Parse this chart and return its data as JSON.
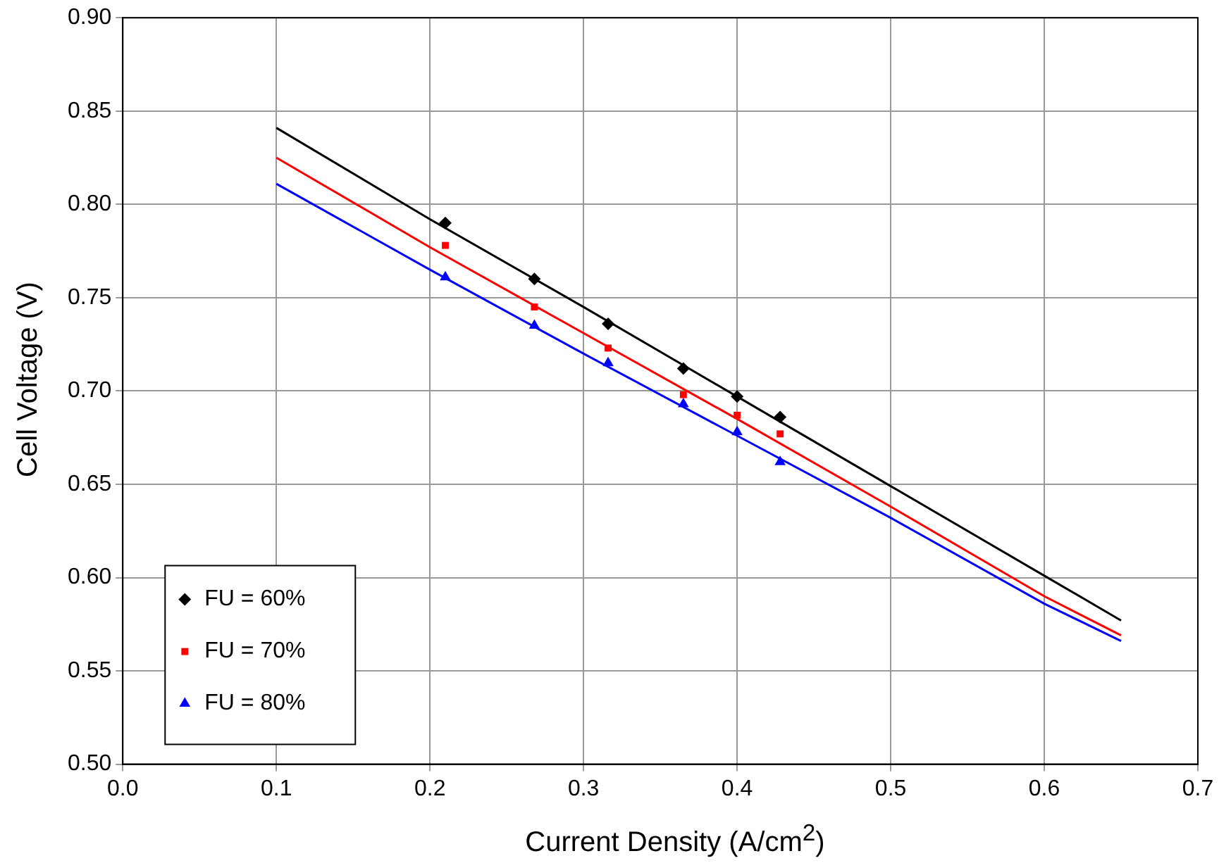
{
  "chart_data": {
    "type": "scatter",
    "xlabel": "Current Density (A/cm$^{2}$)",
    "ylabel": "Cell Voltage (V)",
    "xlim": [
      0,
      0.7
    ],
    "xticks": [
      {
        "value": 0,
        "label": "0.0"
      },
      0.1,
      0.2,
      0.3,
      0.4,
      0.5,
      0.6,
      0.7
    ],
    "ylim": [
      0.5,
      0.9
    ],
    "yticks": [
      {
        "value": 0.5,
        "label": "0.50"
      },
      0.55,
      {
        "value": 0.6,
        "label": "0.60"
      },
      0.65,
      {
        "value": 0.7,
        "label": "0.70"
      },
      0.75,
      {
        "value": 0.8,
        "label": "0.80"
      },
      0.85,
      {
        "value": 0.9,
        "label": "0.90"
      }
    ],
    "grid": true,
    "legend": "bottom left",
    "series": [
      {
        "name": "FU = 60%",
        "marker": "diamond",
        "color": "#000000",
        "x": [
          0.21,
          0.268,
          0.316,
          0.365,
          0.4,
          0.428
        ],
        "values": [
          0.79,
          0.76,
          0.736,
          0.712,
          0.697,
          0.686
        ]
      },
      {
        "name": "FU = 70%",
        "marker": "square",
        "color": "#ff0000",
        "x": [
          0.21,
          0.268,
          0.316,
          0.365,
          0.4,
          0.428
        ],
        "values": [
          0.778,
          0.745,
          0.723,
          0.698,
          0.687,
          0.677
        ]
      },
      {
        "name": "FU = 80%",
        "marker": "triangle",
        "color": "#0000ff",
        "x": [
          0.21,
          0.268,
          0.316,
          0.365,
          0.4,
          0.428
        ],
        "values": [
          0.761,
          0.735,
          0.715,
          0.693,
          0.678,
          0.662
        ]
      },
      {
        "type": "line",
        "marker": "none",
        "color": "#000000",
        "x": [
          0.1,
          0.2,
          0.3,
          0.4,
          0.5,
          0.6,
          0.65
        ],
        "values": [
          0.841,
          0.792,
          0.745,
          0.697,
          0.649,
          0.601,
          0.577
        ]
      },
      {
        "type": "line",
        "marker": "none",
        "color": "#ff0000",
        "x": [
          0.1,
          0.2,
          0.3,
          0.4,
          0.5,
          0.6,
          0.65
        ],
        "values": [
          0.825,
          0.777,
          0.731,
          0.685,
          0.638,
          0.59,
          0.569
        ]
      },
      {
        "type": "line",
        "marker": "none",
        "color": "#0000ff",
        "x": [
          0.1,
          0.2,
          0.3,
          0.4,
          0.5,
          0.6,
          0.65
        ],
        "values": [
          0.811,
          0.765,
          0.72,
          0.676,
          0.632,
          0.586,
          0.566
        ]
      }
    ]
  }
}
